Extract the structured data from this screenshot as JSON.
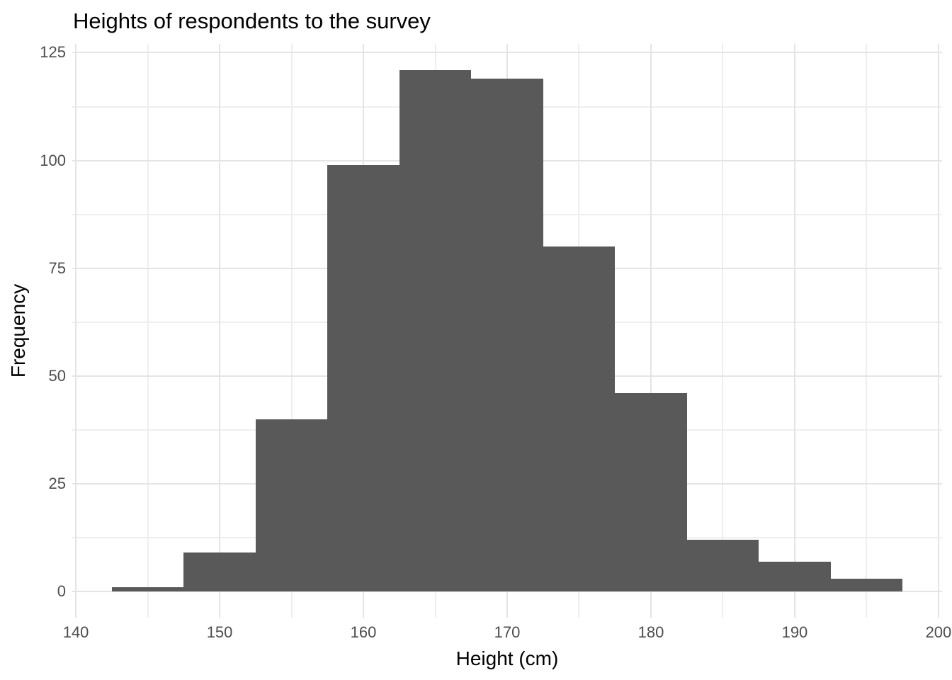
{
  "chart_data": {
    "type": "bar",
    "subtype": "histogram",
    "title": "Heights of respondents to the survey",
    "xlabel": "Height (cm)",
    "ylabel": "Frequency",
    "bin_width": 5,
    "bin_edges": [
      142.5,
      147.5,
      152.5,
      157.5,
      162.5,
      167.5,
      172.5,
      177.5,
      182.5,
      187.5,
      192.5,
      197.5
    ],
    "counts": [
      1,
      9,
      40,
      99,
      121,
      119,
      80,
      46,
      12,
      7,
      3
    ],
    "x_ticks": [
      "140",
      "150",
      "160",
      "170",
      "180",
      "190",
      "200"
    ],
    "x_tick_values": [
      140,
      150,
      160,
      170,
      180,
      190,
      200
    ],
    "x_minor_tick_values": [
      145,
      155,
      165,
      175,
      185,
      195
    ],
    "y_ticks": [
      "0",
      "25",
      "50",
      "75",
      "100",
      "125"
    ],
    "y_tick_values": [
      0,
      25,
      50,
      75,
      100,
      125
    ],
    "y_minor_tick_values": [
      12.5,
      37.5,
      62.5,
      87.5,
      112.5
    ],
    "xlim": [
      139.75,
      200.25
    ],
    "ylim": [
      -6.05,
      127.05
    ],
    "grid": true,
    "legend": "none",
    "colors": {
      "bar_fill": "#595959",
      "grid_major": "#E4E4E4",
      "grid_minor": "#EEEEEE",
      "tick_label": "#4D4D4D",
      "title_text": "#000000",
      "background": "#FFFFFF"
    }
  }
}
